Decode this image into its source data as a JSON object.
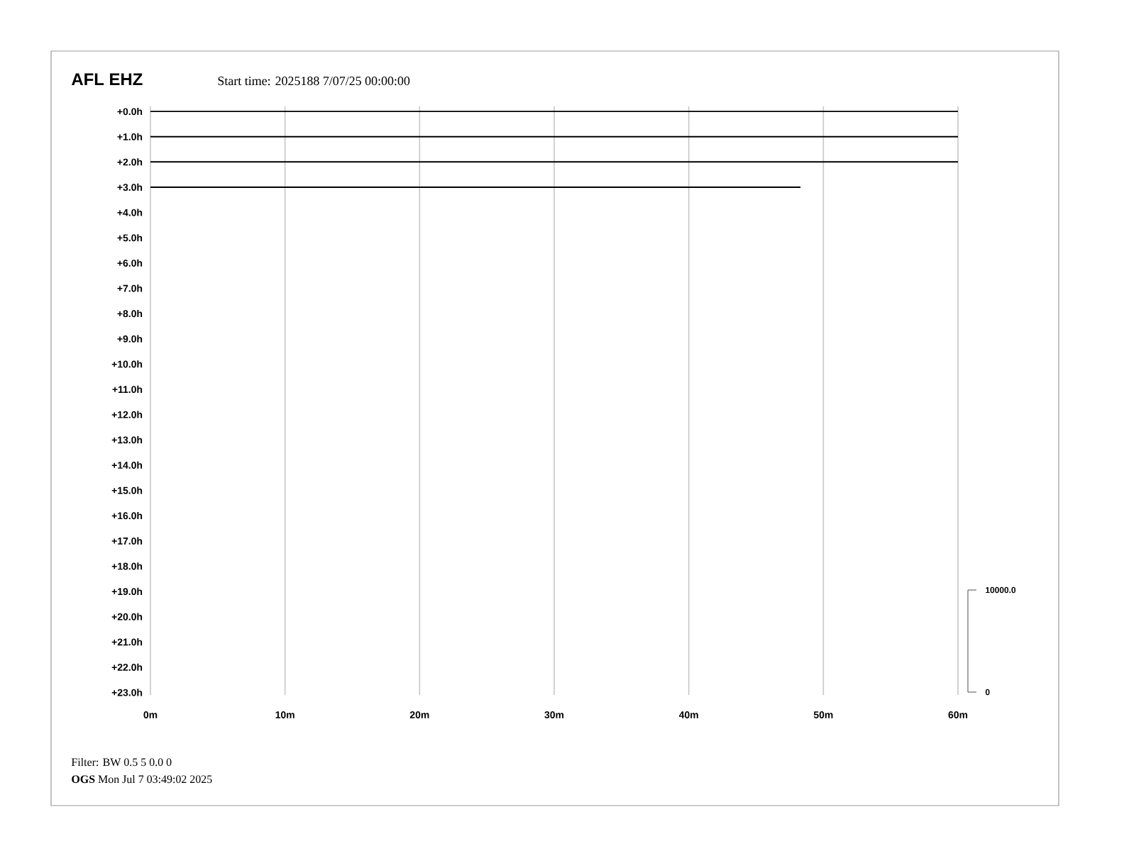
{
  "chart_data": {
    "type": "line",
    "title": "AFL EHZ",
    "subtitle": "Start time: 2025188  7/07/25 00:00:00",
    "xlim": [
      0,
      60
    ],
    "xticks": [
      {
        "value": 0,
        "label": "0m"
      },
      {
        "value": 10,
        "label": "10m"
      },
      {
        "value": 20,
        "label": "20m"
      },
      {
        "value": 30,
        "label": "30m"
      },
      {
        "value": 40,
        "label": "40m"
      },
      {
        "value": 50,
        "label": "50m"
      },
      {
        "value": 60,
        "label": "60m"
      }
    ],
    "ylim": [
      23.1,
      -0.2
    ],
    "yticks": [
      {
        "value": 0,
        "label": "+0.0h"
      },
      {
        "value": 1,
        "label": "+1.0h"
      },
      {
        "value": 2,
        "label": "+2.0h"
      },
      {
        "value": 3,
        "label": "+3.0h"
      },
      {
        "value": 4,
        "label": "+4.0h"
      },
      {
        "value": 5,
        "label": "+5.0h"
      },
      {
        "value": 6,
        "label": "+6.0h"
      },
      {
        "value": 7,
        "label": "+7.0h"
      },
      {
        "value": 8,
        "label": "+8.0h"
      },
      {
        "value": 9,
        "label": "+9.0h"
      },
      {
        "value": 10,
        "label": "+10.0h"
      },
      {
        "value": 11,
        "label": "+11.0h"
      },
      {
        "value": 12,
        "label": "+12.0h"
      },
      {
        "value": 13,
        "label": "+13.0h"
      },
      {
        "value": 14,
        "label": "+14.0h"
      },
      {
        "value": 15,
        "label": "+15.0h"
      },
      {
        "value": 16,
        "label": "+16.0h"
      },
      {
        "value": 17,
        "label": "+17.0h"
      },
      {
        "value": 18,
        "label": "+18.0h"
      },
      {
        "value": 19,
        "label": "+19.0h"
      },
      {
        "value": 20,
        "label": "+20.0h"
      },
      {
        "value": 21,
        "label": "+21.0h"
      },
      {
        "value": 22,
        "label": "+22.0h"
      },
      {
        "value": 23,
        "label": "+23.0h"
      }
    ],
    "grid": "x",
    "series": [
      {
        "color": "#000000",
        "x": [
          0,
          60
        ],
        "values": [
          0,
          0
        ]
      },
      {
        "color": "#000000",
        "x": [
          0,
          60
        ],
        "values": [
          1,
          1
        ]
      },
      {
        "color": "#000000",
        "x": [
          0,
          60
        ],
        "values": [
          2,
          2
        ]
      },
      {
        "color": "#000000",
        "x": [
          0,
          48.3
        ],
        "values": [
          3,
          3
        ]
      }
    ],
    "annotations": [
      "10000.0",
      "0",
      "Filter: BW 0.5 5 0.0 0",
      "**OGS**  Mon Jul  7 03:49:02 2025"
    ]
  }
}
